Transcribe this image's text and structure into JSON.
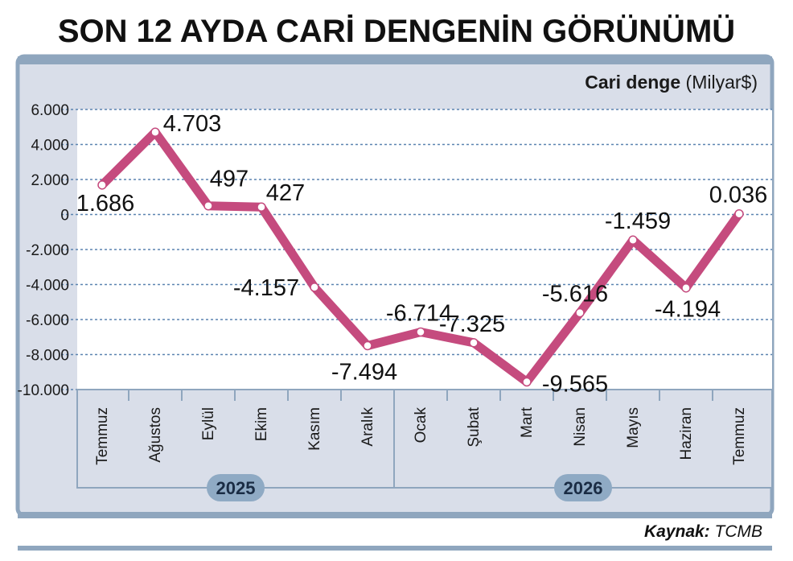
{
  "header": {
    "title": "SON 12 AYDA CARİ DENGENİN GÖRÜNÜMÜ"
  },
  "unit_label": {
    "bold": "Cari denge",
    "rest": " (Milyar$)"
  },
  "footer": {
    "source_label": "Kaynak:",
    "source_value": " TCMB"
  },
  "colors": {
    "line": "#c54b7e",
    "panel": "#d9dee9",
    "border": "#8fa6be",
    "grid": "#5b84b0",
    "year_badge": "#8faac4"
  },
  "chart_data": {
    "type": "line",
    "title": "SON 12 AYDA CARİ DENGENİN GÖRÜNÜMÜ",
    "ylabel": "Cari denge (Milyar$)",
    "xlabel": "",
    "ylim": [
      -10000,
      6000
    ],
    "yticks": [
      6000,
      4000,
      2000,
      0,
      -2000,
      -4000,
      -6000,
      -8000,
      -10000
    ],
    "ytick_labels": [
      "6.000",
      "4.000",
      "2.000",
      "0",
      "-2.000",
      "-4.000",
      "-6.000",
      "-8.000",
      "-10.000"
    ],
    "categories": [
      "Temmuz",
      "Ağustos",
      "Eylül",
      "Ekim",
      "Kasım",
      "Aralık",
      "Ocak",
      "Şubat",
      "Mart",
      "Nisan",
      "Mayıs",
      "Haziran",
      "Temmuz"
    ],
    "years": [
      {
        "label": "2025",
        "start": 0,
        "end": 5
      },
      {
        "label": "2026",
        "start": 6,
        "end": 12
      }
    ],
    "series": [
      {
        "values": [
          1686,
          4703,
          497,
          427,
          -4157,
          -7494,
          -6714,
          -7325,
          -9565,
          -5616,
          -1459,
          -4194,
          36
        ],
        "labels": [
          "1.686",
          "4.703",
          "497",
          "427",
          "-4.157",
          "-7.494",
          "-6.714",
          "-7.325",
          "-9.565",
          "-5.616",
          "-1.459",
          "-4.194",
          "0.036"
        ]
      }
    ],
    "grid": true,
    "legend": "none"
  }
}
